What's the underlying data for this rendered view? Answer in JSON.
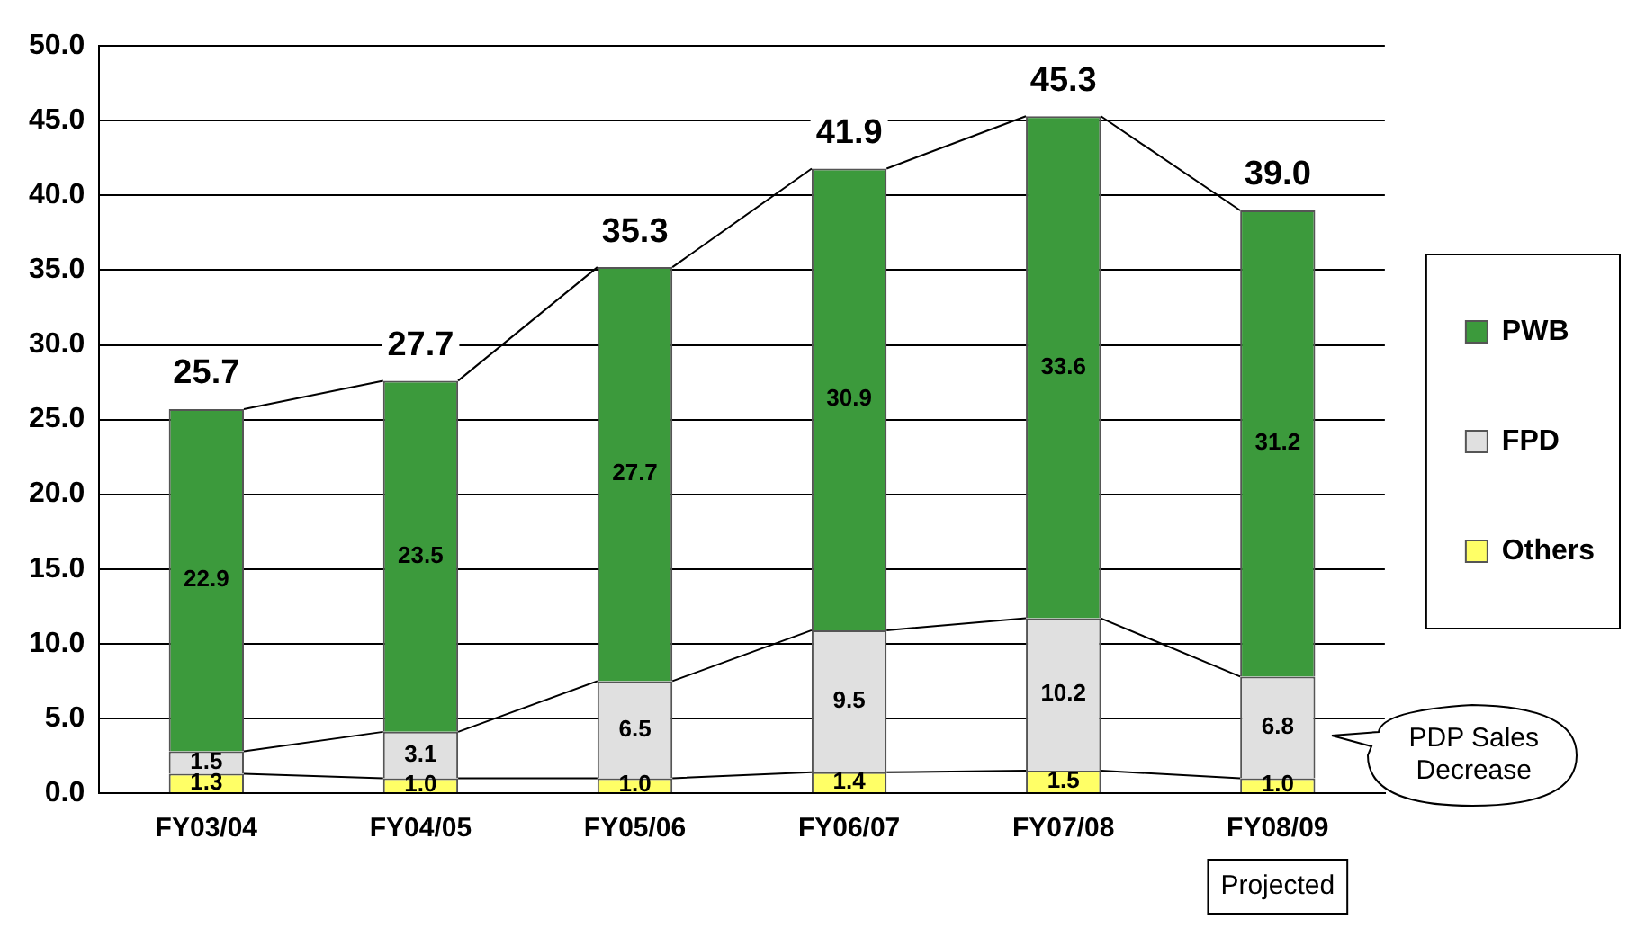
{
  "chart_data": {
    "type": "bar",
    "stacked": true,
    "categories": [
      "FY03/04",
      "FY04/05",
      "FY05/06",
      "FY06/07",
      "FY07/08",
      "FY08/09"
    ],
    "series": [
      {
        "name": "Others",
        "color": "#ffff66",
        "values": [
          1.3,
          1.0,
          1.0,
          1.4,
          1.5,
          1.0
        ],
        "value_labels": [
          "1.3",
          "1.0",
          "1.0",
          "1.4",
          "1.5",
          "1.0"
        ]
      },
      {
        "name": "FPD",
        "color": "#e0e0e0",
        "values": [
          1.5,
          3.1,
          6.5,
          9.5,
          10.2,
          6.8
        ],
        "value_labels": [
          "1.5",
          "3.1",
          "6.5",
          "9.5",
          "10.2",
          "6.8"
        ]
      },
      {
        "name": "PWB",
        "color": "#3c9a3c",
        "values": [
          22.9,
          23.5,
          27.7,
          30.9,
          33.6,
          31.2
        ],
        "value_labels": [
          "22.9",
          "23.5",
          "27.7",
          "30.9",
          "33.6",
          "31.2"
        ]
      }
    ],
    "totals": [
      "25.7",
      "27.7",
      "35.3",
      "41.9",
      "45.3",
      "39.0"
    ],
    "ylim": [
      0,
      50
    ],
    "yticks": [
      {
        "value": 0,
        "label": "0.0"
      },
      {
        "value": 5,
        "label": "5.0"
      },
      {
        "value": 10,
        "label": "10.0"
      },
      {
        "value": 15,
        "label": "15.0"
      },
      {
        "value": 20,
        "label": "20.0"
      },
      {
        "value": 25,
        "label": "25.0"
      },
      {
        "value": 30,
        "label": "30.0"
      },
      {
        "value": 35,
        "label": "35.0"
      },
      {
        "value": 40,
        "label": "40.0"
      },
      {
        "value": 45,
        "label": "45.0"
      },
      {
        "value": 50,
        "label": "50.0"
      }
    ],
    "grid": "y",
    "legend": "right",
    "annotations": [
      "PDP Sales Decrease",
      "Projected"
    ]
  }
}
